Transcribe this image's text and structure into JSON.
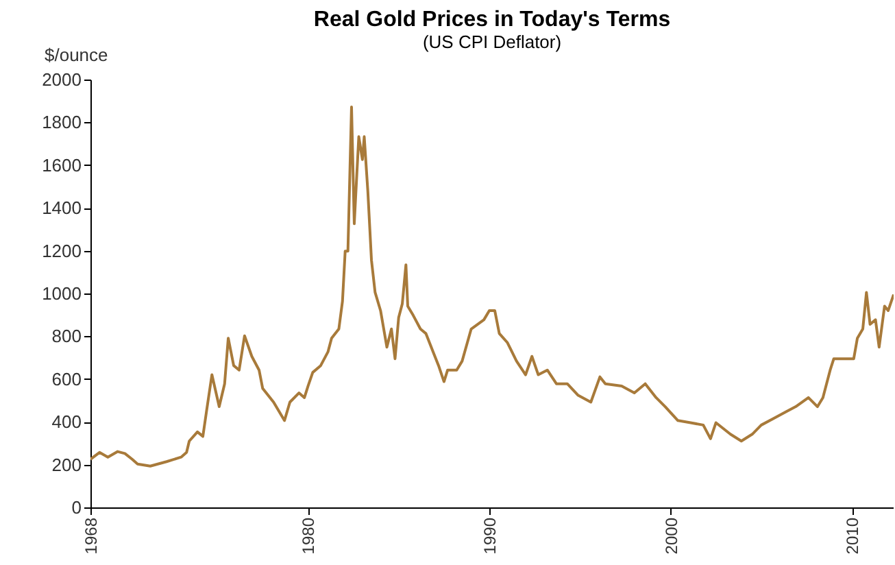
{
  "chart_data": {
    "type": "line",
    "title": "Real Gold Prices in Today's Terms",
    "subtitle": "(US CPI Deflator)",
    "ylabel": "$/ounce",
    "x": [
      1968.0,
      1968.5,
      1968.96,
      1969.5,
      1969.9,
      1970.3,
      1970.6,
      1971.3,
      1972.2,
      1973.0,
      1973.3,
      1973.45,
      1973.9,
      1974.2,
      1974.4,
      1974.7,
      1975.1,
      1975.4,
      1975.6,
      1975.9,
      1976.2,
      1976.5,
      1976.9,
      1977.3,
      1977.5,
      1978.1,
      1978.7,
      1979.0,
      1979.5,
      1979.8,
      1980.0,
      1980.26,
      1980.7,
      1981.1,
      1981.3,
      1981.7,
      1981.9,
      1982.05,
      1982.2,
      1982.4,
      1982.55,
      1982.8,
      1983.0,
      1983.1,
      1983.3,
      1983.5,
      1983.7,
      1984.0,
      1984.35,
      1984.6,
      1984.8,
      1985.0,
      1985.2,
      1985.4,
      1985.5,
      1985.8,
      1986.2,
      1986.5,
      1986.9,
      1987.2,
      1987.5,
      1987.7,
      1988.2,
      1988.5,
      1989.0,
      1989.7,
      1990.0,
      1990.3,
      1990.55,
      1991.0,
      1991.5,
      1992.0,
      1992.35,
      1992.7,
      1993.2,
      1993.7,
      1994.3,
      1994.9,
      1995.6,
      1996.1,
      1996.4,
      1997.3,
      1998.0,
      1998.6,
      1999.2,
      1999.7,
      2000.4,
      2001.1,
      2001.8,
      2002.2,
      2002.5,
      2003.3,
      2003.9,
      2004.5,
      2005.0,
      2005.7,
      2006.4,
      2006.9,
      2007.6,
      2008.1,
      2008.4,
      2008.8,
      2009.0,
      2009.5,
      2010.1,
      2010.3,
      2010.6,
      2010.8,
      2011.0,
      2011.3,
      2011.5,
      2011.8,
      2012.0,
      2012.3
    ],
    "series": [
      {
        "color": "#a87a3a",
        "values": [
          225,
          257,
          235,
          261,
          252,
          225,
          203,
          193,
          214,
          235,
          257,
          310,
          353,
          332,
          449,
          620,
          471,
          578,
          791,
          663,
          642,
          802,
          706,
          642,
          556,
          492,
          406,
          492,
          535,
          513,
          567,
          631,
          663,
          727,
          791,
          834,
          963,
          1198,
          1198,
          1872,
          1326,
          1733,
          1626,
          1733,
          1476,
          1155,
          1005,
          920,
          749,
          834,
          695,
          888,
          952,
          1134,
          941,
          898,
          834,
          813,
          727,
          663,
          588,
          642,
          642,
          684,
          834,
          877,
          920,
          920,
          813,
          770,
          684,
          620,
          706,
          620,
          642,
          578,
          578,
          524,
          492,
          610,
          578,
          567,
          535,
          578,
          513,
          471,
          406,
          396,
          385,
          321,
          396,
          342,
          310,
          342,
          385,
          417,
          449,
          471,
          513,
          471,
          513,
          642,
          695,
          695,
          695,
          791,
          834,
          1005,
          856,
          877,
          749,
          941,
          920,
          995
        ]
      }
    ],
    "xlim": [
      1968,
      2012.3
    ],
    "xticks": [
      1968,
      1980,
      1990,
      2000,
      2010
    ],
    "ylim": [
      0,
      2000
    ],
    "yticks": [
      0,
      200,
      400,
      600,
      800,
      1000,
      1200,
      1400,
      1600,
      1800,
      2000
    ],
    "grid": false,
    "line_style": "solid",
    "marker": "none"
  }
}
